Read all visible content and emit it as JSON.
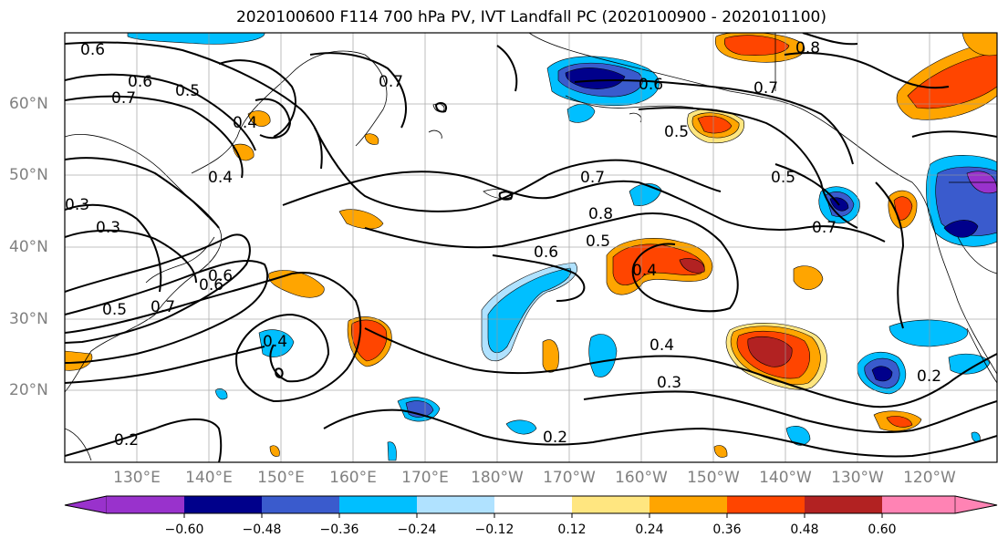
{
  "title": "2020100600 F114 700 hPa PV, IVT Landfall PC (2020100900 - 2020101100)",
  "lat_ticks": [
    "60°N",
    "50°N",
    "40°N",
    "30°N",
    "20°N"
  ],
  "lon_ticks": [
    "130°E",
    "140°E",
    "150°E",
    "160°E",
    "170°E",
    "180°W",
    "170°W",
    "160°W",
    "150°W",
    "140°W",
    "130°W",
    "120°W"
  ],
  "colorbar": {
    "labels": [
      "−0.60",
      "−0.48",
      "−0.36",
      "−0.24",
      "−0.12",
      "0.12",
      "0.24",
      "0.36",
      "0.48",
      "0.60"
    ],
    "colors": [
      "#9932cc",
      "#00008b",
      "#3a5bcd",
      "#00bfff",
      "#b0e2ff",
      "#ffffff",
      "#ffe680",
      "#ffa500",
      "#ff4500",
      "#b22222",
      "#ff83b4"
    ]
  },
  "contour_labels": [
    "0.6",
    "0.6",
    "0.7",
    "0.5",
    "0.4",
    "0.4",
    "0.4",
    "0.3",
    "0.7",
    "0.8",
    "0.7",
    "0.6",
    "0.5",
    "0.4",
    "0.5",
    "0.7",
    "0.6",
    "0.7",
    "0.6",
    "0.5",
    "0.4",
    "0.3",
    "0.2",
    "0.2",
    "0.2",
    "0.8",
    "0.7",
    "0.5",
    "0.3",
    "0.6"
  ]
}
